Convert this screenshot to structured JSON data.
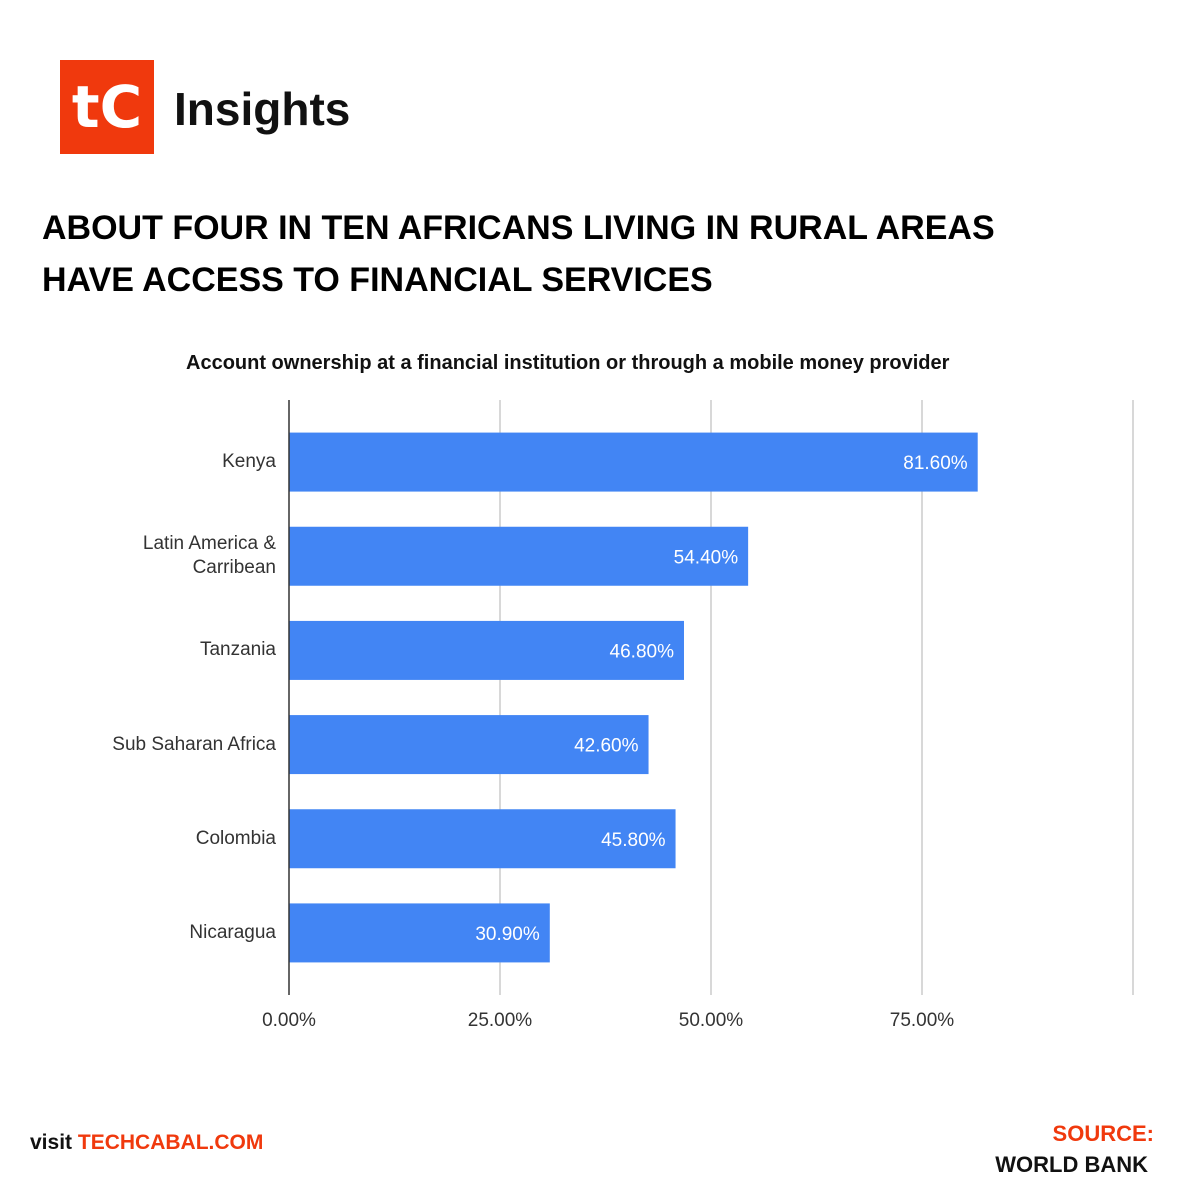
{
  "brand": {
    "logo": "tC",
    "name": "Insights"
  },
  "chart_data": {
    "type": "barh",
    "title": [
      "ABOUT FOUR IN TEN AFRICANS LIVING IN RURAL AREAS",
      "HAVE ACCESS TO FINANCIAL SERVICES"
    ],
    "subtitle": "Account ownership at a financial institution or through a mobile money  provider",
    "categories": [
      "Kenya",
      "Latin America & Carribean",
      "Tanzania",
      "Sub Saharan Africa",
      "Colombia",
      "Nicaragua"
    ],
    "values": [
      81.6,
      54.4,
      46.8,
      42.6,
      45.8,
      30.9
    ],
    "value_labels": [
      "81.60%",
      "54.40%",
      "46.80%",
      "42.60%",
      "45.80%",
      "30.90%"
    ],
    "color": "#4285f4",
    "xlim": [
      0,
      100
    ],
    "xticks": [
      {
        "value": 0,
        "label": "0.00%"
      },
      {
        "value": 25,
        "label": "25.00%"
      },
      {
        "value": 50,
        "label": "50.00%"
      },
      {
        "value": 75,
        "label": "75.00%"
      }
    ],
    "grid": true
  },
  "footer": {
    "visit": "visit",
    "site": "TECHCABAL.COM",
    "source_label": "SOURCE:",
    "source": "WORLD BANK"
  }
}
